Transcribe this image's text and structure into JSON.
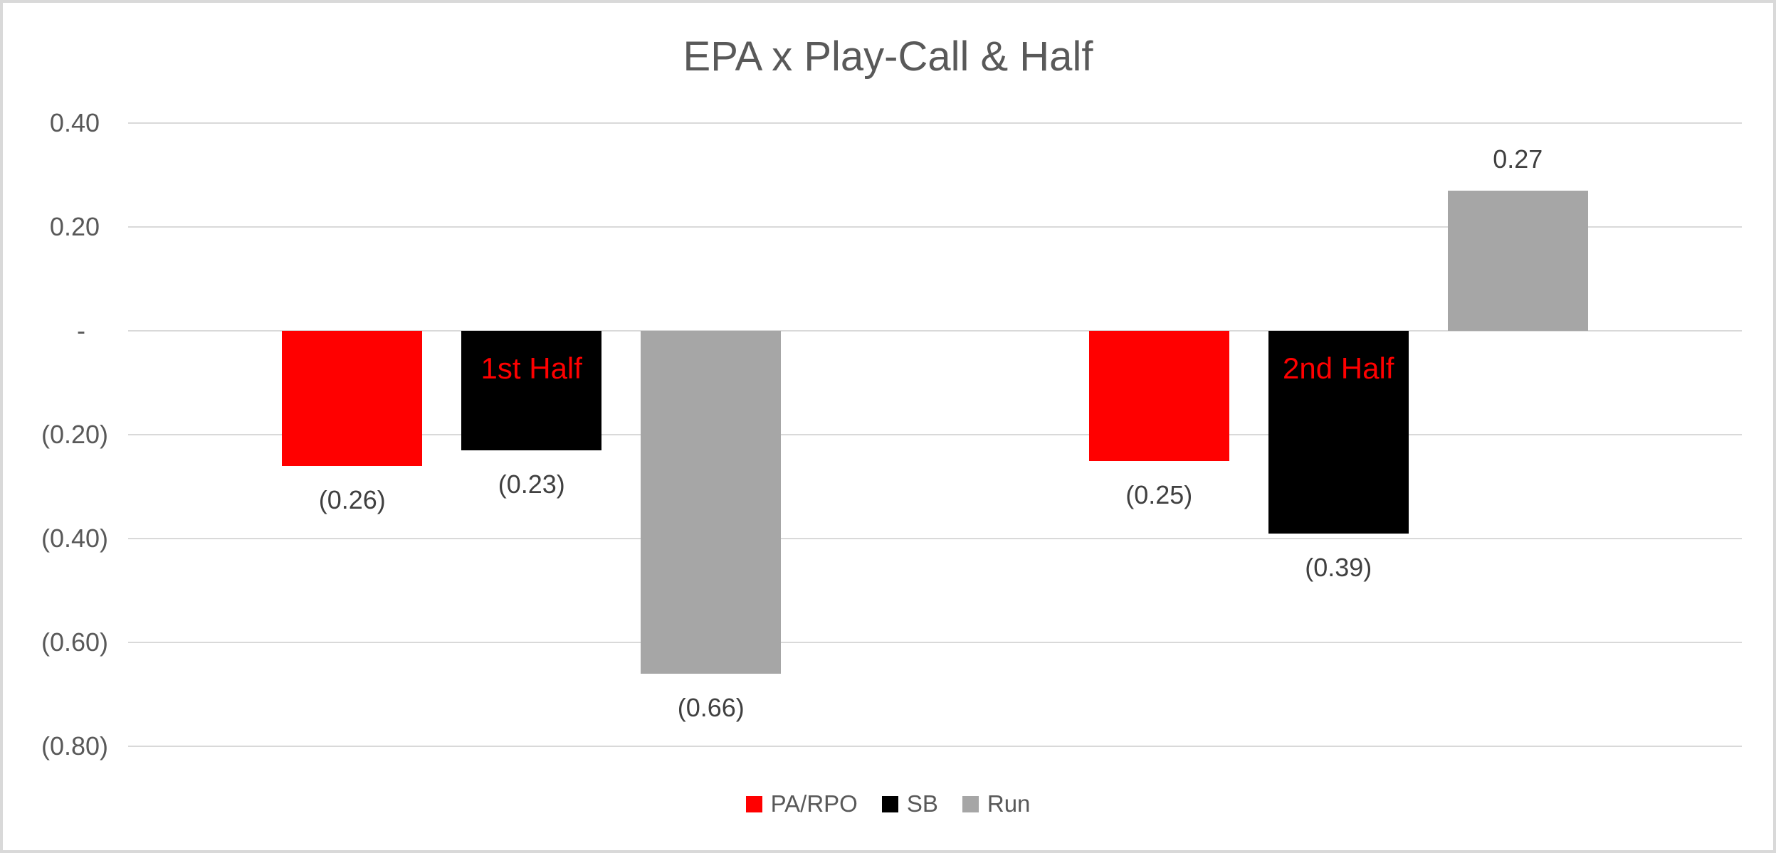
{
  "chart_data": {
    "type": "bar",
    "title": "EPA x Play-Call & Half",
    "categories": [
      "1st Half",
      "2nd Half"
    ],
    "series": [
      {
        "name": "PA/RPO",
        "color": "#ff0000",
        "values": [
          -0.26,
          -0.25
        ],
        "labels": [
          "(0.26)",
          "(0.25)"
        ]
      },
      {
        "name": "SB",
        "color": "#000000",
        "values": [
          -0.23,
          -0.39
        ],
        "labels": [
          "(0.23)",
          "(0.39)"
        ]
      },
      {
        "name": "Run",
        "color": "#a6a6a6",
        "values": [
          -0.66,
          0.27
        ],
        "labels": [
          "(0.66)",
          "0.27"
        ]
      }
    ],
    "annotations": [
      {
        "text": "1st Half",
        "category_index": 0,
        "series_index": 1,
        "color": "#ff0000"
      },
      {
        "text": "2nd Half",
        "category_index": 1,
        "series_index": 1,
        "color": "#ff0000"
      }
    ],
    "y_axis": {
      "ticks": [
        0.4,
        0.2,
        0,
        -0.2,
        -0.4,
        -0.6,
        -0.8
      ],
      "tick_labels": [
        "0.40",
        "0.20",
        "-",
        "(0.20)",
        "(0.40)",
        "(0.60)",
        "(0.80)"
      ],
      "range": [
        -0.88,
        0.48
      ]
    },
    "legend": {
      "position": "bottom",
      "entries": [
        "PA/RPO",
        "SB",
        "Run"
      ]
    },
    "grid": true,
    "colors": {
      "gridline": "#d9d9d9",
      "frame_border": "#d9d9d9",
      "title_text": "#595959",
      "axis_text": "#595959",
      "value_label_text": "#404040",
      "background": "#ffffff"
    }
  }
}
